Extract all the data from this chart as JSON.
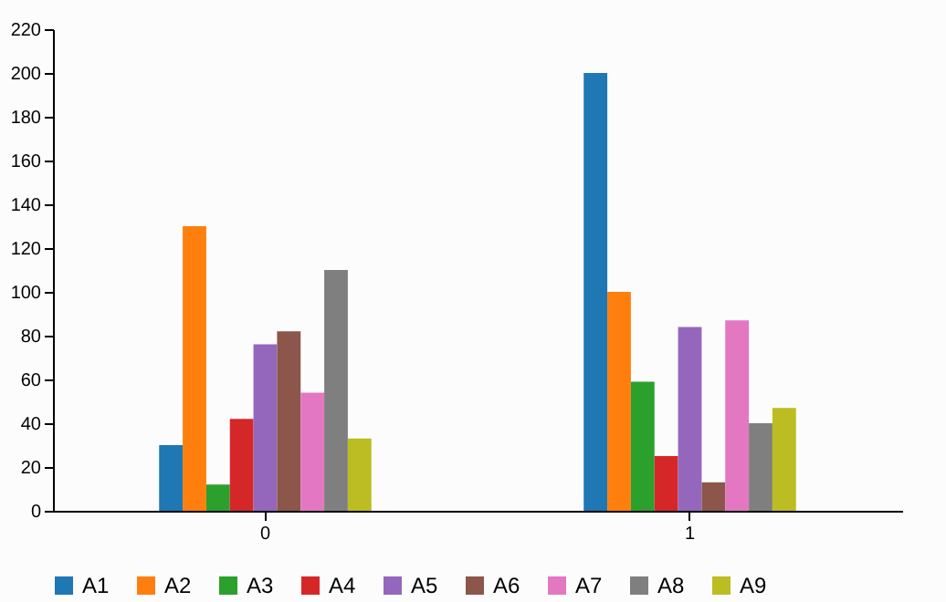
{
  "chart_data": {
    "type": "bar",
    "categories": [
      "0",
      "1"
    ],
    "series": [
      {
        "name": "A1",
        "color": "#1f77b4",
        "values": [
          30,
          200
        ]
      },
      {
        "name": "A2",
        "color": "#ff7f0e",
        "values": [
          130,
          100
        ]
      },
      {
        "name": "A3",
        "color": "#2ca02c",
        "values": [
          12,
          59
        ]
      },
      {
        "name": "A4",
        "color": "#d62728",
        "values": [
          42,
          25
        ]
      },
      {
        "name": "A5",
        "color": "#9467bd",
        "values": [
          76,
          84
        ]
      },
      {
        "name": "A6",
        "color": "#8c564b",
        "values": [
          82,
          13
        ]
      },
      {
        "name": "A7",
        "color": "#e377c2",
        "values": [
          54,
          87
        ]
      },
      {
        "name": "A8",
        "color": "#7f7f7f",
        "values": [
          110,
          40
        ]
      },
      {
        "name": "A9",
        "color": "#bcbd22",
        "values": [
          33,
          47
        ]
      }
    ],
    "ylim": [
      0,
      220
    ],
    "yticks": [
      0,
      20,
      40,
      60,
      80,
      100,
      120,
      140,
      160,
      180,
      200,
      220
    ],
    "grid": false,
    "legend": "bottom"
  }
}
